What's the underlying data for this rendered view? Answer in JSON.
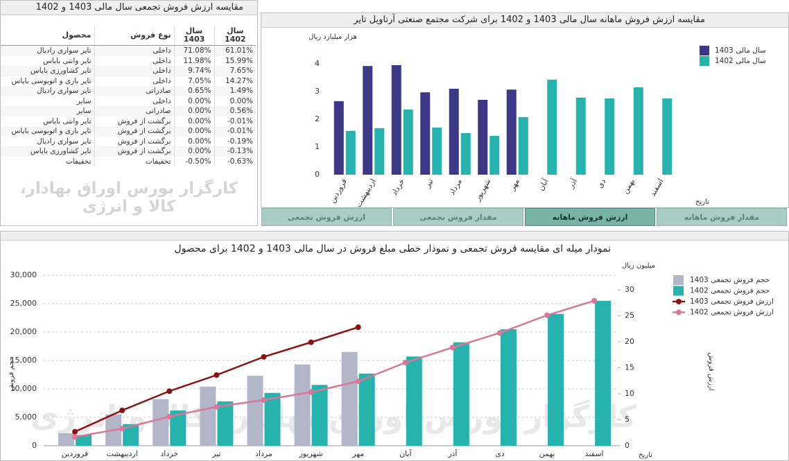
{
  "table": {
    "title": "مقایسه ارزش فروش تجمعی سال مالی 1403 و 1402",
    "headers": [
      "محصول",
      "نوع فروش",
      "سال 1403",
      "سال 1402"
    ],
    "rows": [
      [
        "تایر سواری رادیال",
        "داخلی",
        "71.08%",
        "61.01%"
      ],
      [
        "تایر وانتی بایاس",
        "داخلی",
        "11.98%",
        "15.99%"
      ],
      [
        "تایر کشاورزی بایاس",
        "داخلی",
        "9.74%",
        "7.65%"
      ],
      [
        "تایر باری و اتوبوسی بایاس",
        "داخلی",
        "7.05%",
        "14.27%"
      ],
      [
        "تایر سواری رادیال",
        "صادراتی",
        "0.65%",
        "1.49%"
      ],
      [
        "سایر",
        "داخلی",
        "0.00%",
        "0.00%"
      ],
      [
        "سایر",
        "صادراتی",
        "0.00%",
        "0.56%"
      ],
      [
        "تایر وانتی بایاس",
        "برگشت از فروش",
        "0.00%",
        "-0.01%"
      ],
      [
        "تایر باری و اتوبوسی بایاس",
        "برگشت از فروش",
        "0.00%",
        "-0.01%"
      ],
      [
        "تایر سواری رادیال",
        "برگشت از فروش",
        "0.00%",
        "-0.19%"
      ],
      [
        "تایر کشاورزی بایاس",
        "برگشت از فروش",
        "0.00%",
        "-0.13%"
      ],
      [
        "تخفیفات",
        "تخفیفات",
        "-0.50%",
        "-0.63%"
      ]
    ],
    "watermark": "کارگزار بورس اوراق بهادار، کالا و انرژی"
  },
  "tabs": [
    "ارزش فروش تجمعی",
    "مقدار فروش تجمعی",
    "ارزش فروش ماهانه",
    "مقدار فروش ماهانه"
  ],
  "active_tab": 2,
  "chart_data": [
    {
      "type": "bar",
      "title": "مقایسه ارزش فروش ماهانه سال مالی 1403 و 1402 برای شرکت مجتمع صنعتی آرتاویل تایر",
      "y_label": "هزار میلیارد ریال",
      "x_label": "تاریخ",
      "categories": [
        "فروردین",
        "اردیبهشت",
        "خرداد",
        "تیر",
        "مرداد",
        "شهریور",
        "مهر",
        "آبان",
        "آذر",
        "دی",
        "بهمن",
        "اسفند"
      ],
      "series": [
        {
          "name": "سال مالی 1403",
          "color": "#3d3787",
          "values": [
            2.65,
            3.92,
            3.95,
            2.97,
            3.1,
            2.7,
            3.07,
            null,
            null,
            null,
            null,
            null
          ]
        },
        {
          "name": "سال مالی 1402",
          "color": "#26b3ae",
          "values": [
            1.58,
            1.68,
            2.35,
            1.7,
            1.5,
            1.4,
            2.08,
            3.43,
            2.78,
            2.75,
            3.15,
            2.75
          ]
        }
      ],
      "ylim": [
        0,
        4.3
      ],
      "yticks": [
        0,
        1,
        2,
        3,
        4
      ],
      "grid": false,
      "legend": "upper right"
    },
    {
      "type": "bar-line",
      "title": "نمودار میله ای مقایسه فروش تجمعی و نمودار خطی مبلغ فروش در سال مالی 1403 و 1402 برای محصول",
      "y_label": "حجم فروش",
      "y2_label": "ارزش فروش",
      "y2_unit": "میلیون ریال",
      "x_label": "تاریخ",
      "categories": [
        "فروردین",
        "اردیبهشت",
        "خرداد",
        "تیر",
        "مرداد",
        "شهریور",
        "مهر",
        "آبان",
        "آذر",
        "دی",
        "بهمن",
        "اسفند"
      ],
      "series": [
        {
          "name": "حجم فروش تجمعی 1403",
          "color": "#b3b5c9",
          "style": "bar",
          "values": [
            2200,
            5500,
            8200,
            10400,
            12300,
            14300,
            16500,
            null,
            null,
            null,
            null,
            null
          ]
        },
        {
          "name": "حجم فروش تجمعی 1402",
          "color": "#26b3ae",
          "style": "bar",
          "values": [
            1900,
            3800,
            6200,
            7800,
            9300,
            10700,
            12700,
            15700,
            18200,
            20500,
            23200,
            25500
          ]
        },
        {
          "name": "ارزش فروش تجمعی 1403",
          "color": "#8c1212",
          "style": "line",
          "axis": "y2",
          "values": [
            2.7,
            6.8,
            10.5,
            13.6,
            17.1,
            19.9,
            22.8,
            null,
            null,
            null,
            null,
            null
          ]
        },
        {
          "name": "ارزش فروش تجمعی 1402",
          "color": "#d9779a",
          "style": "line",
          "axis": "y2",
          "values": [
            1.7,
            3.3,
            5.6,
            7.5,
            8.8,
            10.3,
            12.4,
            16,
            18.9,
            21.7,
            25.1,
            27.9
          ]
        }
      ],
      "ylim": [
        0,
        30000
      ],
      "yticks": [
        0,
        {
          "value": 5000,
          "label": "5,000"
        },
        {
          "value": 10000,
          "label": "10,000"
        },
        {
          "value": 15000,
          "label": "15,000"
        },
        {
          "value": 20000,
          "label": "20,000"
        },
        {
          "value": 25000,
          "label": "25,000"
        },
        {
          "value": 30000,
          "label": "30,000"
        }
      ],
      "y2lim": [
        0,
        32.8
      ],
      "y2ticks": [
        0,
        5,
        10,
        15,
        20,
        25,
        30
      ],
      "grid": true,
      "legend": "upper right"
    }
  ]
}
